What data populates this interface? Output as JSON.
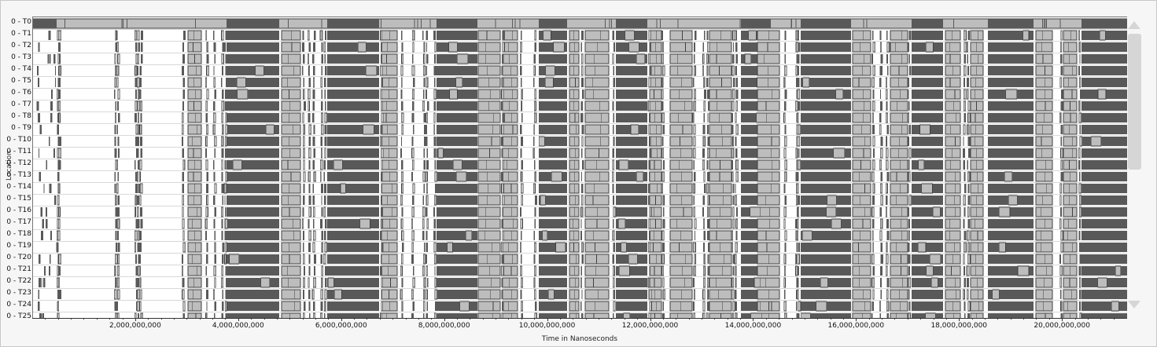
{
  "y_axis_label": "Location",
  "x_axis_label": "Time in Nanoseconds",
  "x_tick_labels": [
    "2,000,000,000",
    "4,000,000,000",
    "6,000,000,000",
    "8,000,000,000",
    "10,000,000,000",
    "12,000,000,000",
    "14,000,000,000",
    "16,000,000,000",
    "18,000,000,000",
    "20,000,000,000"
  ],
  "rows": [
    "0 - T0",
    "0 - T1",
    "0 - T2",
    "0 - T3",
    "0 - T4",
    "0 - T5",
    "0 - T6",
    "0 - T7",
    "0 - T8",
    "0 - T9",
    "0 - T10",
    "0 - T11",
    "0 - T12",
    "0 - T13",
    "0 - T14",
    "0 - T15",
    "0 - T16",
    "0 - T17",
    "0 - T18",
    "0 - T19",
    "0 - T20",
    "0 - T21",
    "0 - T22",
    "0 - T23",
    "0 - T24",
    "0 - T25"
  ],
  "x_range_ns": [
    0,
    21250000000
  ],
  "colors": {
    "dark_block": "#595959",
    "light_block": "#bdbdbd",
    "block_edge": "#404040"
  },
  "scrollbar": {
    "up_icon": "triangle-up",
    "down_icon": "triangle-down"
  }
}
